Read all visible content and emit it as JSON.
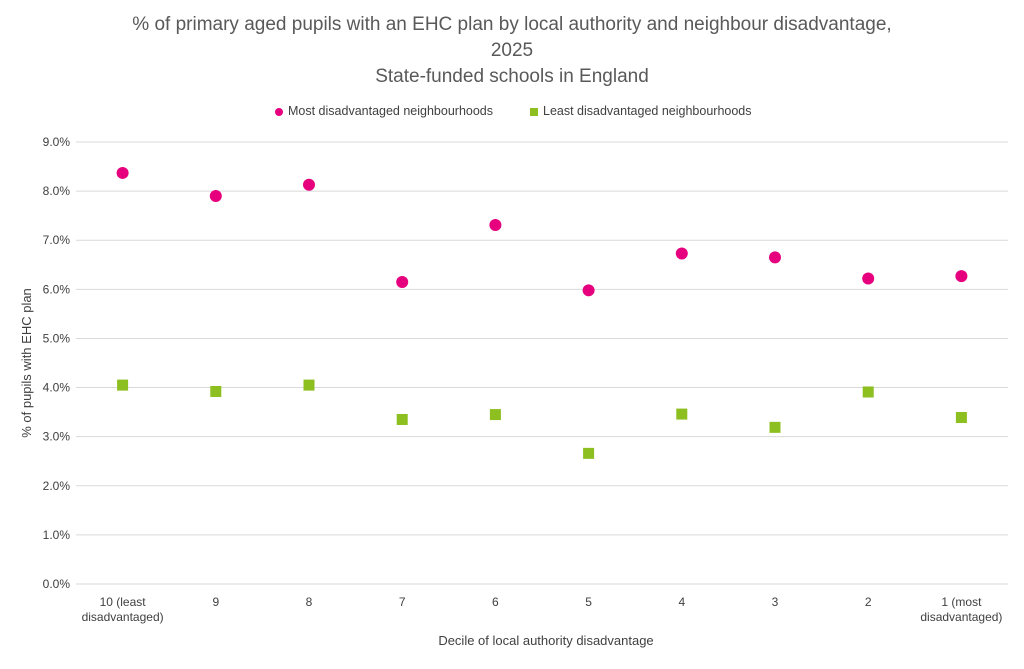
{
  "chart_data": {
    "type": "scatter",
    "title_lines": [
      "% of primary aged pupils with an EHC plan by local authority and neighbour disadvantage,",
      "2025",
      "State-funded schools in England"
    ],
    "xlabel": "Decile of local authority disadvantage",
    "ylabel": "% of pupils with EHC plan",
    "categories": [
      [
        "10 (least",
        "disadvantaged)"
      ],
      [
        "9"
      ],
      [
        "8"
      ],
      [
        "7"
      ],
      [
        "6"
      ],
      [
        "5"
      ],
      [
        "4"
      ],
      [
        "3"
      ],
      [
        "2"
      ],
      [
        "1 (most",
        "disadvantaged)"
      ]
    ],
    "ylim": [
      0,
      9
    ],
    "ytick_step": 1,
    "ytick_labels": [
      "0.0%",
      "1.0%",
      "2.0%",
      "3.0%",
      "4.0%",
      "5.0%",
      "6.0%",
      "7.0%",
      "8.0%",
      "9.0%"
    ],
    "grid": true,
    "legend_position": "top",
    "series": [
      {
        "name": "Most disadvantaged neighbourhoods",
        "marker": "circle",
        "color": "#E6007E",
        "values": [
          8.37,
          7.9,
          8.13,
          6.15,
          7.31,
          5.98,
          6.73,
          6.65,
          6.22,
          6.27
        ]
      },
      {
        "name": "Least disadvantaged neighbourhoods",
        "marker": "square",
        "color": "#8CBF1F",
        "values": [
          4.05,
          3.92,
          4.05,
          3.35,
          3.45,
          2.66,
          3.46,
          3.19,
          3.91,
          3.39
        ]
      }
    ],
    "gridline_color": "#D9D9D9"
  }
}
